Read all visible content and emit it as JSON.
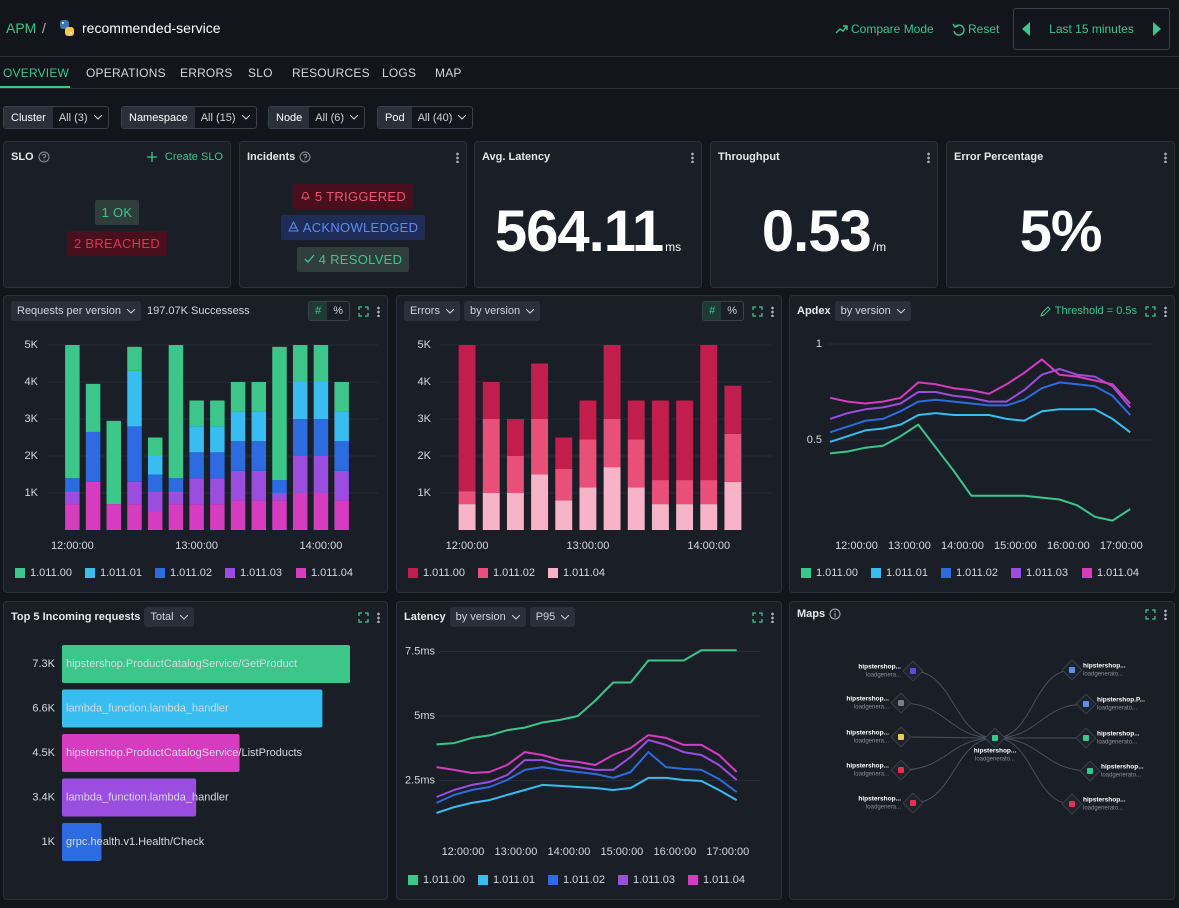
{
  "header": {
    "app": "APM",
    "separator": "/",
    "service": "recommended-service",
    "compare": "Compare Mode",
    "reset": "Reset",
    "range": "Last 15 minutes"
  },
  "tabs": [
    "OVERVIEW",
    "OPERATIONS",
    "ERRORS",
    "SLO",
    "RESOURCES",
    "LOGS",
    "MAP"
  ],
  "filters": [
    {
      "label": "Cluster",
      "value": "All (3)"
    },
    {
      "label": "Namespace",
      "value": "All (15)"
    },
    {
      "label": "Node",
      "value": "All (6)"
    },
    {
      "label": "Pod",
      "value": "All (40)"
    }
  ],
  "cards": {
    "slo": {
      "title": "SLO",
      "action": "Create SLO",
      "ok": "1 OK",
      "breached": "2 BREACHED"
    },
    "incidents": {
      "title": "Incidents",
      "triggered": "5 TRIGGERED",
      "acknowledged": "ACKNOWLEDGED",
      "resolved": "4 RESOLVED"
    },
    "latency": {
      "title": "Avg. Latency",
      "value": "564.11",
      "unit": "ms"
    },
    "throughput": {
      "title": "Throughput",
      "value": "0.53",
      "unit": "/m"
    },
    "errors": {
      "title": "Error Percentage",
      "value": "5%"
    }
  },
  "panels": {
    "requests": {
      "selector": "Requests per version",
      "summary": "197.07K Successess",
      "count": "#",
      "percent": "%"
    },
    "errors": {
      "selector": "Errors",
      "group": "by version",
      "count": "#",
      "percent": "%"
    },
    "apdex": {
      "title": "Apdex",
      "group": "by version",
      "threshold": "Threshold = 0.5s"
    },
    "top": {
      "title": "Top 5 Incoming requests",
      "group": "Total"
    },
    "latency": {
      "title": "Latency",
      "group": "by version",
      "stat": "P95"
    },
    "maps": {
      "title": "Maps"
    }
  },
  "maps": {
    "nodes": [
      {
        "name": "hipstershop...",
        "sub": "loadgenera..."
      },
      {
        "name": "hipstershop...",
        "sub": "loadgenera..."
      },
      {
        "name": "hipstershop...",
        "sub": "loadgenera..."
      },
      {
        "name": "hipstershop...",
        "sub": "loadgenera..."
      },
      {
        "name": "hipstershop...",
        "sub": "loadgenera..."
      },
      {
        "name": "hipstershop...",
        "sub": "loadgenerato..."
      },
      {
        "name": "hipstershop...",
        "sub": "loadgenerato..."
      },
      {
        "name": "hipstershop.P...",
        "sub": "loadgenerato..."
      },
      {
        "name": "hipstershop...",
        "sub": "loadgenerato..."
      },
      {
        "name": "hipstershop...",
        "sub": "loadgenerato..."
      },
      {
        "name": "hipstershop...",
        "sub": "loadgenerato..."
      }
    ]
  },
  "chart_data": [
    {
      "type": "bar",
      "stacked": true,
      "grid": true,
      "categories": [
        "12:00:00",
        null,
        null,
        null,
        null,
        null,
        "13:00:00",
        null,
        null,
        null,
        null,
        null,
        "14:00:00",
        null
      ],
      "ylim": [
        0,
        5000
      ],
      "yticks": [
        {
          "value": 1000,
          "label": "1K"
        },
        {
          "value": 2000,
          "label": "2K"
        },
        {
          "value": 3000,
          "label": "3K"
        },
        {
          "value": 4000,
          "label": "4K"
        },
        {
          "value": 5000,
          "label": "5K"
        }
      ],
      "series": [
        {
          "name": "1.011.00",
          "color": "#3cc68a",
          "values": [
            3600,
            1300,
            2250,
            650,
            500,
            3600,
            700,
            700,
            800,
            800,
            3600,
            1000,
            1000,
            800
          ]
        },
        {
          "name": "1.011.01",
          "color": "#38bdf0",
          "values": [
            0,
            0,
            0,
            1500,
            500,
            0,
            700,
            700,
            800,
            800,
            0,
            1000,
            1000,
            800
          ]
        },
        {
          "name": "1.011.02",
          "color": "#2d6be0",
          "values": [
            350,
            1350,
            0,
            1500,
            450,
            350,
            700,
            700,
            800,
            800,
            350,
            1000,
            1000,
            800
          ]
        },
        {
          "name": "1.011.03",
          "color": "#9b4de0",
          "values": [
            350,
            0,
            0,
            600,
            550,
            350,
            700,
            700,
            800,
            800,
            200,
            1000,
            1000,
            800
          ]
        },
        {
          "name": "1.011.04",
          "color": "#d63cc0",
          "values": [
            700,
            1300,
            700,
            700,
            500,
            700,
            700,
            700,
            800,
            800,
            800,
            1000,
            1000,
            800
          ]
        }
      ]
    },
    {
      "type": "bar",
      "stacked": true,
      "grid": true,
      "categories": [
        "12:00:00",
        null,
        null,
        null,
        null,
        "13:00:00",
        null,
        null,
        null,
        null,
        "14:00:00",
        null
      ],
      "ylim": [
        0,
        5000
      ],
      "yticks": [
        {
          "value": 1000,
          "label": "1K"
        },
        {
          "value": 2000,
          "label": "2K"
        },
        {
          "value": 3000,
          "label": "3K"
        },
        {
          "value": 4000,
          "label": "4K"
        },
        {
          "value": 5000,
          "label": "5K"
        }
      ],
      "series": [
        {
          "name": "1.011.00",
          "color": "#c21e4d",
          "values": [
            3950,
            1000,
            1000,
            1500,
            850,
            1050,
            2000,
            1050,
            2150,
            2150,
            3650,
            1300
          ]
        },
        {
          "name": "1.011.02",
          "color": "#e8507a",
          "values": [
            350,
            2000,
            1000,
            1500,
            850,
            1300,
            1300,
            1300,
            650,
            650,
            650,
            1300
          ]
        },
        {
          "name": "1.011.04",
          "color": "#f7b3c7",
          "values": [
            700,
            1000,
            1000,
            1500,
            800,
            1150,
            1700,
            1150,
            700,
            700,
            700,
            1300
          ]
        }
      ]
    },
    {
      "type": "line",
      "grid": true,
      "x": [
        690,
        710,
        730,
        750,
        770,
        790,
        810,
        830,
        850,
        870,
        890,
        910,
        930,
        950,
        970,
        990,
        1010,
        1030
      ],
      "xlim": [
        690,
        1040
      ],
      "xticks": [
        {
          "value": 720,
          "label": "12:00:00"
        },
        {
          "value": 780,
          "label": "13:00:00"
        },
        {
          "value": 840,
          "label": "14:00:00"
        },
        {
          "value": 900,
          "label": "15:00:00"
        },
        {
          "value": 960,
          "label": "16:00:00"
        },
        {
          "value": 1020,
          "label": "17:00:00"
        }
      ],
      "ylim": [
        0,
        1
      ],
      "yticks": [
        0.5,
        1
      ],
      "series": [
        {
          "name": "1.011.00",
          "color": "#3cc68a",
          "values": [
            0.43,
            0.44,
            0.46,
            0.47,
            0.52,
            0.58,
            0.46,
            0.34,
            0.21,
            0.21,
            0.21,
            0.21,
            0.2,
            0.19,
            0.16,
            0.1,
            0.08,
            0.14
          ]
        },
        {
          "name": "1.011.01",
          "color": "#38bdf0",
          "values": [
            0.49,
            0.52,
            0.55,
            0.56,
            0.58,
            0.63,
            0.64,
            0.63,
            0.63,
            0.63,
            0.61,
            0.6,
            0.65,
            0.66,
            0.66,
            0.66,
            0.61,
            0.54
          ]
        },
        {
          "name": "1.011.02",
          "color": "#2d6be0",
          "values": [
            0.54,
            0.57,
            0.6,
            0.61,
            0.65,
            0.7,
            0.71,
            0.7,
            0.69,
            0.68,
            0.68,
            0.71,
            0.77,
            0.8,
            0.79,
            0.78,
            0.73,
            0.63
          ]
        },
        {
          "name": "1.011.03",
          "color": "#9b4de0",
          "values": [
            0.61,
            0.64,
            0.66,
            0.67,
            0.69,
            0.75,
            0.75,
            0.73,
            0.72,
            0.7,
            0.7,
            0.76,
            0.84,
            0.87,
            0.84,
            0.83,
            0.78,
            0.67
          ]
        },
        {
          "name": "1.011.04",
          "color": "#d63cc0",
          "values": [
            0.72,
            0.7,
            0.69,
            0.7,
            0.72,
            0.8,
            0.79,
            0.77,
            0.76,
            0.74,
            0.79,
            0.85,
            0.92,
            0.84,
            0.83,
            0.81,
            0.79,
            0.69
          ]
        }
      ]
    },
    {
      "type": "hbar",
      "categories": [
        "hipstershop.ProductCatalogService/GetProduct",
        "lambda_function.lambda_handler",
        "hipstershop.ProductCatalogService/ListProducts",
        "lambda_function.lambda_handler",
        "grpc.health.v1.Health/Check"
      ],
      "values": [
        7300,
        6600,
        4500,
        3400,
        1000
      ],
      "value_labels": [
        "7.3K",
        "6.6K",
        "4.5K",
        "3.4K",
        "1K"
      ],
      "colors": [
        "#3cc68a",
        "#38bdf0",
        "#d63cc0",
        "#9b4de0",
        "#2d6be0"
      ]
    },
    {
      "type": "line",
      "grid": true,
      "x": [
        690,
        710,
        730,
        750,
        770,
        790,
        810,
        830,
        850,
        870,
        890,
        910,
        930,
        950,
        970,
        990,
        1010,
        1030
      ],
      "xlim": [
        690,
        1040
      ],
      "xticks": [
        {
          "value": 720,
          "label": "12:00:00"
        },
        {
          "value": 780,
          "label": "13:00:00"
        },
        {
          "value": 840,
          "label": "14:00:00"
        },
        {
          "value": 900,
          "label": "15:00:00"
        },
        {
          "value": 960,
          "label": "16:00:00"
        },
        {
          "value": 1020,
          "label": "17:00:00"
        }
      ],
      "ylim": [
        0,
        8
      ],
      "yticks": [
        {
          "value": 2.5,
          "label": "2.5ms"
        },
        {
          "value": 5,
          "label": "5ms"
        },
        {
          "value": 7.5,
          "label": "7.5ms"
        }
      ],
      "series": [
        {
          "name": "1.011.00",
          "color": "#3cc68a",
          "values": [
            3.9,
            3.95,
            4.15,
            4.25,
            4.45,
            4.55,
            4.75,
            4.85,
            5.0,
            5.6,
            6.3,
            6.3,
            7.15,
            7.15,
            7.15,
            7.55,
            7.55,
            7.55
          ]
        },
        {
          "name": "1.011.01",
          "color": "#38bdf0",
          "values": [
            1.24,
            1.47,
            1.63,
            1.74,
            1.94,
            2.13,
            2.33,
            2.29,
            2.25,
            2.21,
            2.13,
            2.21,
            2.6,
            2.6,
            2.52,
            2.48,
            2.13,
            1.74
          ]
        },
        {
          "name": "1.011.02",
          "color": "#2d6be0",
          "values": [
            1.63,
            1.94,
            2.13,
            2.25,
            2.52,
            2.91,
            3.02,
            2.91,
            2.83,
            2.75,
            2.6,
            2.83,
            3.6,
            3.02,
            2.95,
            2.91,
            2.56,
            2.05
          ]
        },
        {
          "name": "1.011.03",
          "color": "#9b4de0",
          "values": [
            1.86,
            2.13,
            2.33,
            2.44,
            2.71,
            3.29,
            3.29,
            3.1,
            3.02,
            2.91,
            2.91,
            3.41,
            4.07,
            3.88,
            3.6,
            3.49,
            3.1,
            2.52
          ]
        },
        {
          "name": "1.011.04",
          "color": "#d63cc0",
          "values": [
            3.02,
            2.91,
            2.79,
            2.83,
            3.1,
            3.6,
            3.49,
            3.29,
            3.22,
            3.1,
            3.49,
            3.76,
            4.26,
            4.15,
            3.88,
            3.88,
            3.49,
            2.83
          ]
        }
      ]
    }
  ]
}
